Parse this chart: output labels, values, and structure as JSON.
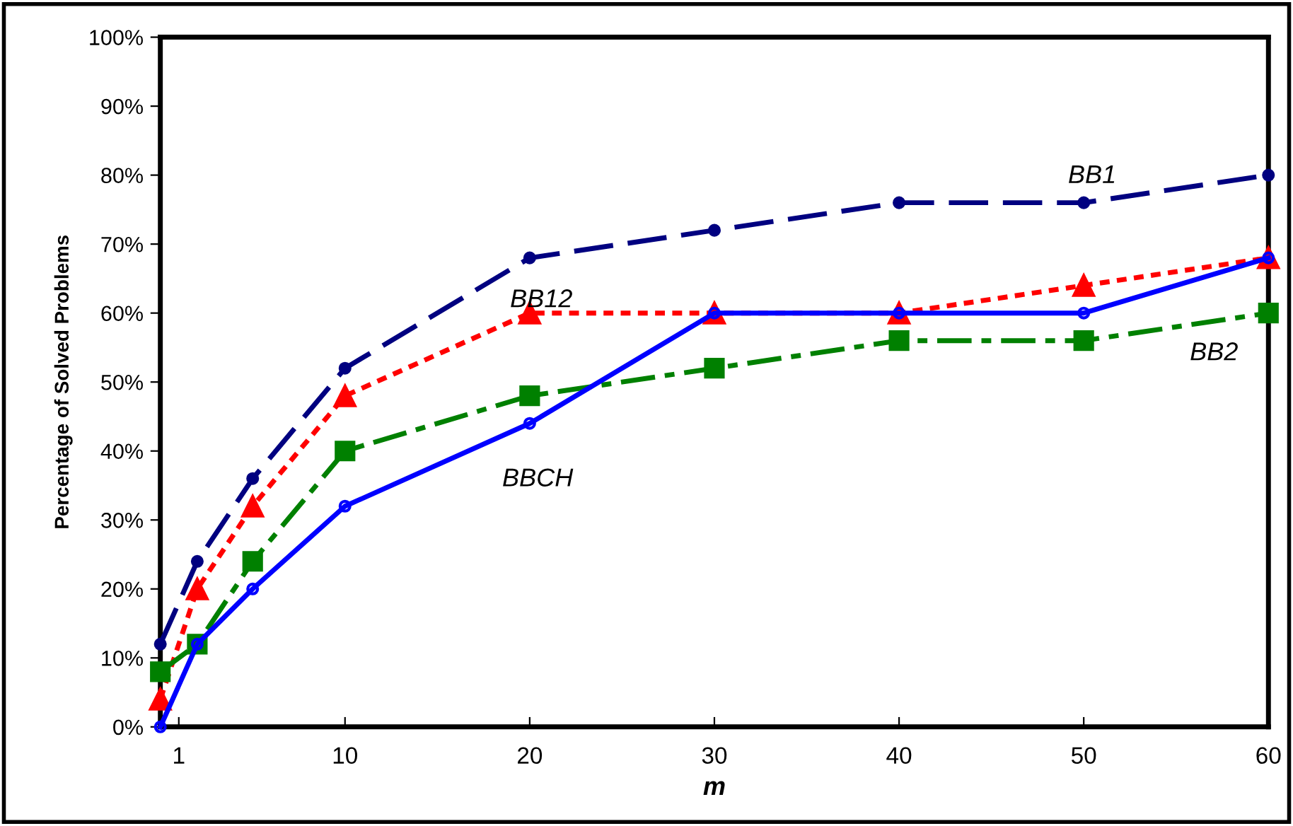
{
  "chart_data": {
    "type": "line",
    "xlabel": "m",
    "ylabel": "Percentage of Solved Problems",
    "x": [
      0,
      2,
      5,
      10,
      20,
      30,
      40,
      50,
      60
    ],
    "xlim": [
      0,
      60
    ],
    "xticks": [
      {
        "value": 0,
        "label": null
      },
      1,
      10,
      20,
      30,
      40,
      50,
      60
    ],
    "ylim": [
      0,
      100
    ],
    "yticks": [
      {
        "value": 0,
        "label": "0%"
      },
      {
        "value": 10,
        "label": "10%"
      },
      {
        "value": 20,
        "label": "20%"
      },
      {
        "value": 30,
        "label": "30%"
      },
      {
        "value": 40,
        "label": "40%"
      },
      {
        "value": 50,
        "label": "50%"
      },
      {
        "value": 60,
        "label": "60%"
      },
      {
        "value": 70,
        "label": "70%"
      },
      {
        "value": 80,
        "label": "80%"
      },
      {
        "value": 90,
        "label": "90%"
      },
      {
        "value": 100,
        "label": "100%"
      }
    ],
    "grid": false,
    "legend": false,
    "series": [
      {
        "name": "BB1",
        "color": "#000080",
        "marker": "circle",
        "line_style": "dashed",
        "values": [
          12,
          24,
          36,
          52,
          68,
          72,
          76,
          76,
          80
        ]
      },
      {
        "name": "BB12",
        "color": "#ff0000",
        "marker": "triangle",
        "line_style": "dotted",
        "values": [
          4,
          20,
          32,
          48,
          60,
          60,
          60,
          64,
          68
        ]
      },
      {
        "name": "BB2",
        "color": "#008000",
        "marker": "square",
        "line_style": "dashdot",
        "values": [
          8,
          12,
          24,
          40,
          48,
          52,
          56,
          56,
          60
        ]
      },
      {
        "name": "BBCH",
        "color": "#0000ff",
        "marker": "open circle",
        "line_style": "solid",
        "values": [
          0,
          12,
          20,
          32,
          44,
          60,
          60,
          60,
          68
        ]
      }
    ]
  }
}
